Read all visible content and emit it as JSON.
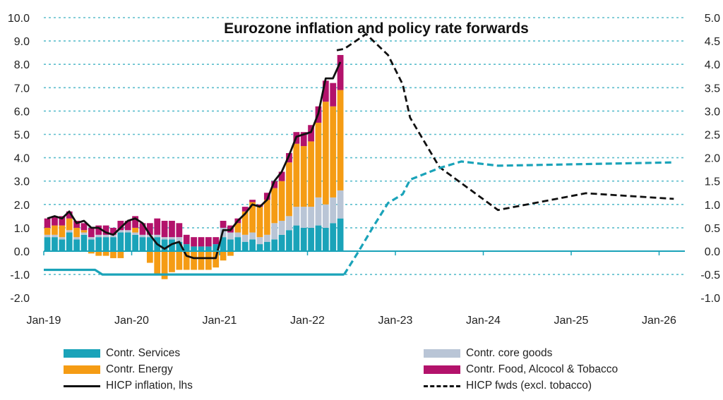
{
  "chart_data": {
    "type": "bar",
    "title": "Eurozone inflation and policy rate forwards",
    "months_start": "2019-01",
    "x_tick_labels": [
      "Jan-19",
      "Jan-20",
      "Jan-21",
      "Jan-22",
      "Jan-23",
      "Jan-24",
      "Jan-25",
      "Jan-26"
    ],
    "y_left": {
      "range": [
        -2,
        10
      ],
      "ticks": [
        "10.0",
        "9.0",
        "8.0",
        "7.0",
        "6.0",
        "5.0",
        "4.0",
        "3.0",
        "2.0",
        "1.0",
        "0.0",
        "-1.0",
        "-2.0"
      ]
    },
    "y_right": {
      "range": [
        -1,
        5
      ],
      "ticks": [
        "5.0",
        "4.5",
        "4.0",
        "3.5",
        "3.0",
        "2.5",
        "2.0",
        "1.5",
        "1.0",
        "0.5",
        "0.0",
        "-0.5",
        "-1.0"
      ]
    },
    "grid": "horizontal dotted",
    "legend_position": "bottom",
    "series": [
      {
        "name": "Contr. Services",
        "kind": "stacked-bar",
        "axis": "left",
        "color": "#1aa3b9",
        "values": [
          0.6,
          0.6,
          0.5,
          0.8,
          0.5,
          0.7,
          0.5,
          0.6,
          0.6,
          0.6,
          0.8,
          0.8,
          0.7,
          0.6,
          0.6,
          0.6,
          0.5,
          0.5,
          0.4,
          0.3,
          0.2,
          0.2,
          0.2,
          0.3,
          0.6,
          0.5,
          0.6,
          0.4,
          0.5,
          0.3,
          0.4,
          0.5,
          0.7,
          0.9,
          1.1,
          1.0,
          1.0,
          1.1,
          1.0,
          1.2,
          1.4
        ]
      },
      {
        "name": "Contr. core goods",
        "kind": "stacked-bar",
        "axis": "left",
        "color": "#b9c5d6",
        "values": [
          0.1,
          0.1,
          0.1,
          0.1,
          0.1,
          0.1,
          0.1,
          0.1,
          0.1,
          0.1,
          0.1,
          0.1,
          0.1,
          0.1,
          0.1,
          0.1,
          0.1,
          0.1,
          0.2,
          0.0,
          0.0,
          0.0,
          0.0,
          0.0,
          0.4,
          0.3,
          0.2,
          0.3,
          0.3,
          0.3,
          0.3,
          0.7,
          0.6,
          0.6,
          0.8,
          0.9,
          0.9,
          1.2,
          1.0,
          1.1,
          1.2
        ]
      },
      {
        "name": "Contr. Energy",
        "kind": "stacked-bar",
        "axis": "left",
        "color": "#f59c14",
        "values": [
          0.3,
          0.4,
          0.5,
          0.5,
          0.4,
          0.1,
          -0.1,
          -0.2,
          -0.2,
          -0.3,
          -0.3,
          0.0,
          0.2,
          0.0,
          -0.5,
          -1.0,
          -1.2,
          -0.9,
          -0.8,
          -0.8,
          -0.8,
          -0.8,
          -0.8,
          -0.7,
          -0.4,
          -0.2,
          0.4,
          1.0,
          1.3,
          1.3,
          1.5,
          1.5,
          1.7,
          2.3,
          2.7,
          2.6,
          2.8,
          3.2,
          4.4,
          3.9,
          4.3
        ]
      },
      {
        "name": "Contr. Food, Alcocol & Tobacco",
        "kind": "stacked-bar",
        "axis": "left",
        "color": "#b3126b",
        "values": [
          0.4,
          0.4,
          0.4,
          0.3,
          0.3,
          0.3,
          0.4,
          0.4,
          0.4,
          0.3,
          0.4,
          0.4,
          0.5,
          0.5,
          0.5,
          0.7,
          0.7,
          0.7,
          0.6,
          0.4,
          0.4,
          0.4,
          0.4,
          0.3,
          0.3,
          0.3,
          0.2,
          0.2,
          0.1,
          0.1,
          0.3,
          0.3,
          0.4,
          0.4,
          0.5,
          0.6,
          0.7,
          0.7,
          0.9,
          1.0,
          1.5
        ]
      },
      {
        "name": "HICP inflation, lhs",
        "kind": "line",
        "axis": "left",
        "color": "#111111",
        "values": [
          1.4,
          1.5,
          1.4,
          1.7,
          1.2,
          1.3,
          1.0,
          1.0,
          0.8,
          0.7,
          1.0,
          1.3,
          1.4,
          1.2,
          0.7,
          0.3,
          0.1,
          0.3,
          0.4,
          -0.2,
          -0.3,
          -0.3,
          -0.3,
          -0.3,
          0.9,
          0.9,
          1.3,
          1.6,
          2.0,
          1.9,
          2.2,
          3.0,
          3.4,
          4.1,
          4.9,
          5.0,
          5.1,
          5.9,
          7.4,
          7.4,
          8.1
        ]
      },
      {
        "name": "HICP fwds (excl. tobacco)",
        "kind": "dashed-line",
        "axis": "right",
        "color": "#111111",
        "x": [
          "2022-05",
          "2022-06",
          "2022-09",
          "2022-12",
          "2023-02",
          "2023-03",
          "2023-07",
          "2024-03",
          "2025-03",
          "2026-03"
        ],
        "values": [
          4.3,
          4.33,
          4.65,
          4.2,
          3.57,
          2.86,
          1.8,
          0.88,
          1.24,
          1.12
        ]
      },
      {
        "kind": "line",
        "axis": "right",
        "color": "#1aa3b9",
        "x": [
          "2019-01",
          "2019-08",
          "2019-09",
          "2022-06"
        ],
        "values": [
          -0.4,
          -0.4,
          -0.5,
          -0.5
        ]
      },
      {
        "kind": "dashed-line",
        "axis": "right",
        "color": "#1aa3b9",
        "x": [
          "2022-06",
          "2022-08",
          "2022-10",
          "2022-12",
          "2023-02",
          "2023-03",
          "2023-07",
          "2023-10",
          "2024-03",
          "2026-03"
        ],
        "values": [
          -0.5,
          0.0,
          0.53,
          1.03,
          1.22,
          1.53,
          1.78,
          1.92,
          1.83,
          1.9
        ]
      }
    ]
  }
}
